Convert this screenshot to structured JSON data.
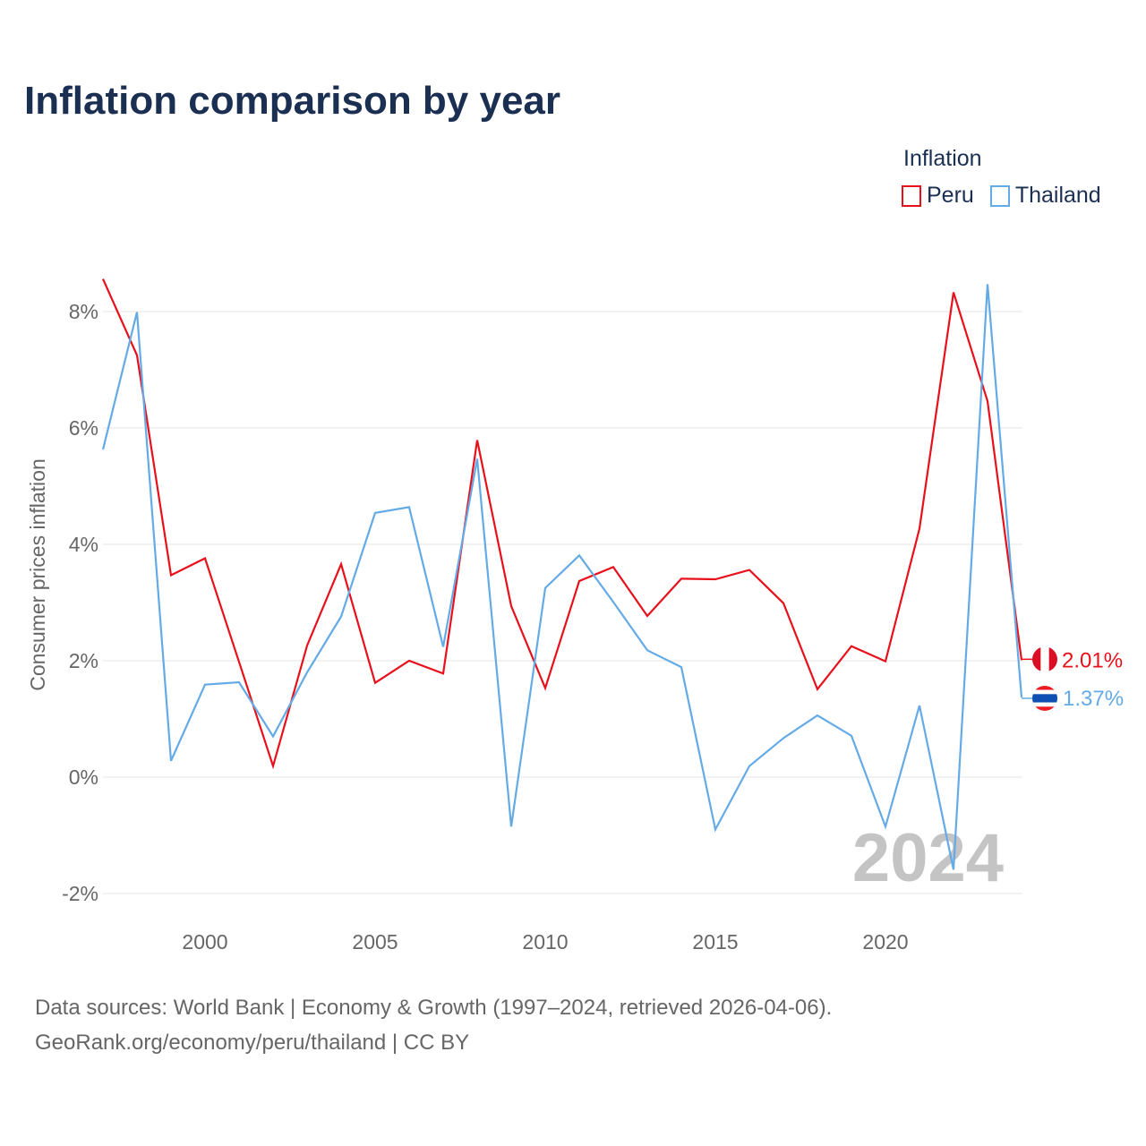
{
  "title": "Inflation comparison by year",
  "legend": {
    "title": "Inflation",
    "items": [
      {
        "name": "Peru",
        "color": "#e8101a"
      },
      {
        "name": "Thailand",
        "color": "#64aae6"
      }
    ]
  },
  "footer": {
    "line1": "Data sources: World Bank | Economy & Growth (1997–2024, retrieved 2026-04-06).",
    "line2": "GeoRank.org/economy/peru/thailand | CC BY"
  },
  "chart_data": {
    "type": "line",
    "title": "Inflation comparison by year",
    "xlabel": "",
    "ylabel": "Consumer prices inflation",
    "x": [
      1997,
      1998,
      1999,
      2000,
      2001,
      2002,
      2003,
      2004,
      2005,
      2006,
      2007,
      2008,
      2009,
      2010,
      2011,
      2012,
      2013,
      2014,
      2015,
      2016,
      2017,
      2018,
      2019,
      2020,
      2021,
      2022,
      2023,
      2024
    ],
    "xlim": [
      1997,
      2024
    ],
    "ylim": [
      -2,
      8.8
    ],
    "xticks": [
      2000,
      2005,
      2010,
      2015,
      2020
    ],
    "yticks": [
      -2,
      0,
      2,
      4,
      6,
      8
    ],
    "ytick_labels": [
      "-2%",
      "0%",
      "2%",
      "4%",
      "6%",
      "8%"
    ],
    "grid": true,
    "current_year": "2024",
    "series": [
      {
        "name": "Peru",
        "color": "#e8101a",
        "values": [
          8.56,
          7.25,
          3.47,
          3.76,
          1.98,
          0.19,
          2.26,
          3.66,
          1.62,
          2.0,
          1.78,
          5.79,
          2.94,
          1.53,
          3.37,
          3.61,
          2.77,
          3.41,
          3.4,
          3.56,
          2.99,
          1.51,
          2.25,
          1.99,
          4.27,
          8.33,
          6.46,
          2.01
        ],
        "end_label": "2.01%"
      },
      {
        "name": "Thailand",
        "color": "#64aae6",
        "values": [
          5.63,
          7.99,
          0.28,
          1.59,
          1.63,
          0.7,
          1.8,
          2.76,
          4.54,
          4.64,
          2.24,
          5.47,
          -0.85,
          3.25,
          3.81,
          3.01,
          2.18,
          1.89,
          -0.9,
          0.19,
          0.67,
          1.06,
          0.71,
          -0.85,
          1.23,
          -1.59,
          8.47,
          1.37
        ],
        "end_label": "1.37%"
      }
    ]
  }
}
